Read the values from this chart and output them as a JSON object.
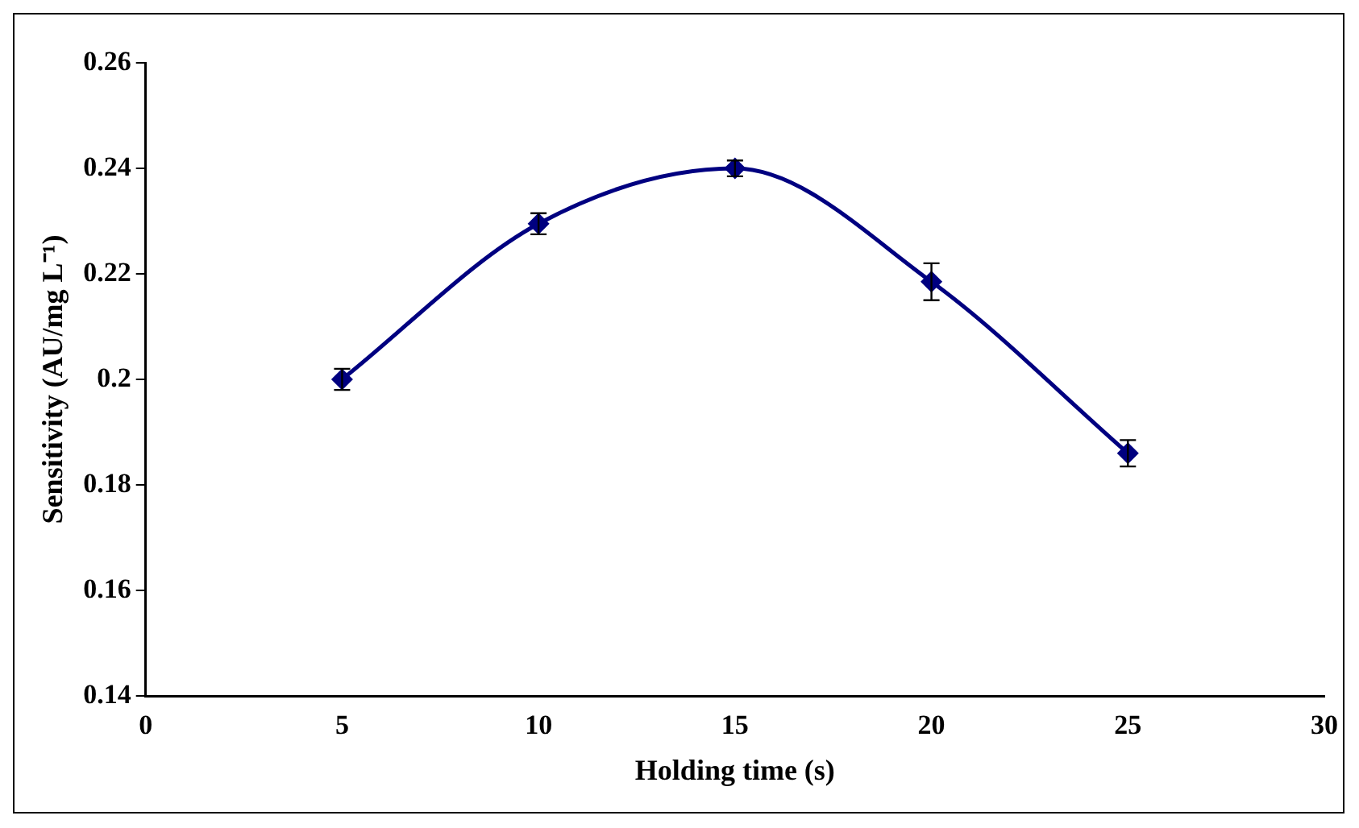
{
  "chart_data": {
    "type": "line",
    "xlabel": "Holding time (s)",
    "ylabel": "Sensitivity (AU/mg L⁻¹)",
    "x": [
      5,
      10,
      15,
      20,
      25
    ],
    "series": [
      {
        "color": "#000080",
        "values": [
          0.2,
          0.2295,
          0.24,
          0.2185,
          0.186
        ],
        "errors": [
          0.002,
          0.002,
          0.0015,
          0.0035,
          0.0025
        ]
      }
    ],
    "xlim": [
      0,
      30
    ],
    "xticks": [
      0,
      5,
      10,
      15,
      20,
      25,
      30
    ],
    "ylim": [
      0.14,
      0.26
    ],
    "yticks": [
      0.14,
      0.16,
      0.18,
      0.2,
      0.22,
      0.24,
      0.26
    ],
    "grid": false,
    "legend": false,
    "marker": "diamond",
    "line_style": "solid"
  }
}
